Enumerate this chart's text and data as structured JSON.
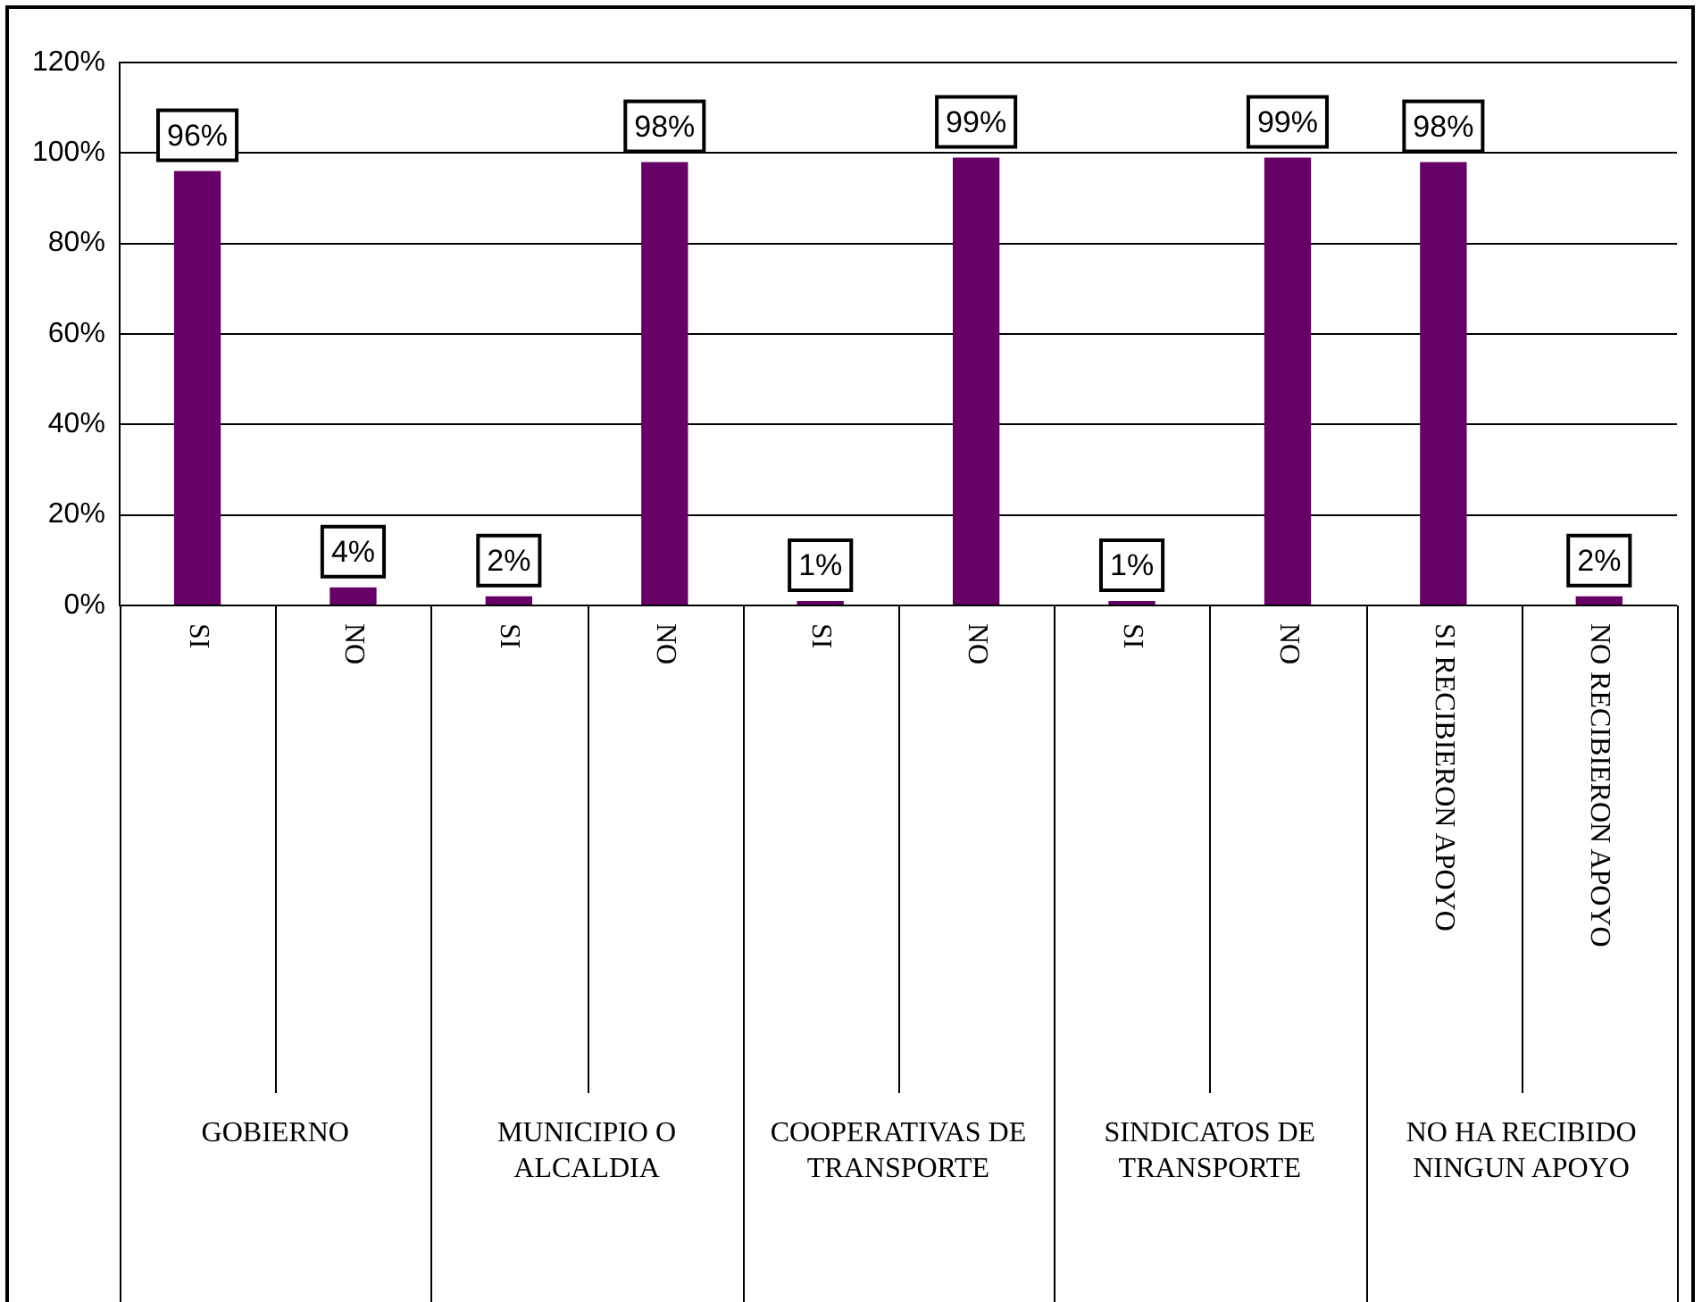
{
  "chart_data": {
    "type": "bar",
    "categories": [
      "SI",
      "NO",
      "SI",
      "NO",
      "SI",
      "NO",
      "SI",
      "NO",
      "SI RECIBIERON APOYO",
      "NO RECIBIERON APOYO"
    ],
    "values": [
      96,
      4,
      2,
      98,
      1,
      99,
      1,
      99,
      98,
      2
    ],
    "value_labels": [
      "96%",
      "4%",
      "2%",
      "98%",
      "1%",
      "99%",
      "1%",
      "99%",
      "98%",
      "2%"
    ],
    "color": "#660066",
    "ylim": [
      0,
      120
    ],
    "yticks": [
      {
        "value": 0,
        "label": "0%"
      },
      {
        "value": 20,
        "label": "20%"
      },
      {
        "value": 40,
        "label": "40%"
      },
      {
        "value": 60,
        "label": "60%"
      },
      {
        "value": 80,
        "label": "80%"
      },
      {
        "value": 100,
        "label": "100%"
      },
      {
        "value": 120,
        "label": "120%"
      }
    ],
    "grid": "y",
    "legend": false,
    "annotations": [
      "GOBIERNO",
      "MUNICIPIO O ALCALDIA",
      "COOPERATIVAS DE TRANSPORTE",
      "SINDICATOS DE TRANSPORTE",
      "NO HA RECIBIDO NINGUN APOYO"
    ]
  }
}
